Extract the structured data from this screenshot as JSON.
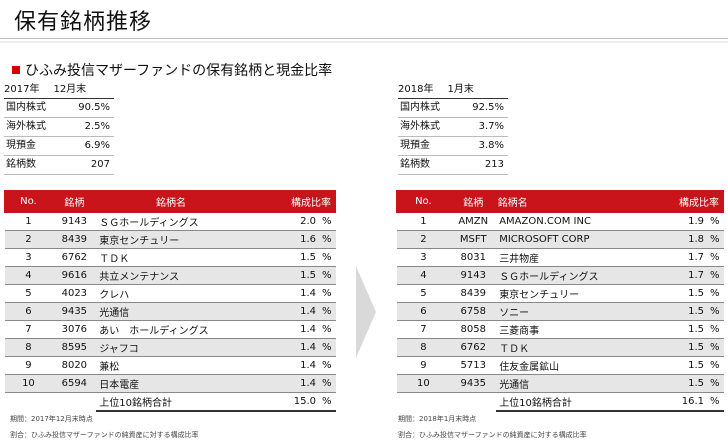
{
  "page_title": "保有銘柄推移",
  "subtitle": "ひふみ投信マザーファンドの保有銘柄と現金比率",
  "colors": {
    "accent": "#c9141b",
    "row_alt": "#e6e6e6",
    "arrow": "#d9d9d9"
  },
  "left": {
    "year": "2017年",
    "month": "12月末",
    "summary": [
      {
        "label": "国内株式",
        "value": "90.5%"
      },
      {
        "label": "海外株式",
        "value": "2.5%"
      },
      {
        "label": "現預金",
        "value": "6.9%"
      },
      {
        "label": "銘柄数",
        "value": "207"
      }
    ],
    "headers": {
      "no": "No.",
      "code": "銘柄",
      "name": "銘柄名",
      "ratio": "構成比率"
    },
    "rows": [
      {
        "no": "1",
        "code": "9143",
        "name": "ＳＧホールディングス",
        "pct": "2.0",
        "unit": "%"
      },
      {
        "no": "2",
        "code": "8439",
        "name": "東京センチュリー",
        "pct": "1.6",
        "unit": "%"
      },
      {
        "no": "3",
        "code": "6762",
        "name": "ＴＤＫ",
        "pct": "1.5",
        "unit": "%"
      },
      {
        "no": "4",
        "code": "9616",
        "name": "共立メンテナンス",
        "pct": "1.5",
        "unit": "%"
      },
      {
        "no": "5",
        "code": "4023",
        "name": "クレハ",
        "pct": "1.4",
        "unit": "%"
      },
      {
        "no": "6",
        "code": "9435",
        "name": "光通信",
        "pct": "1.4",
        "unit": "%"
      },
      {
        "no": "7",
        "code": "3076",
        "name": "あい　ホールディングス",
        "pct": "1.4",
        "unit": "%"
      },
      {
        "no": "8",
        "code": "8595",
        "name": "ジャフコ",
        "pct": "1.4",
        "unit": "%"
      },
      {
        "no": "9",
        "code": "8020",
        "name": "兼松",
        "pct": "1.4",
        "unit": "%"
      },
      {
        "no": "10",
        "code": "6594",
        "name": "日本電産",
        "pct": "1.4",
        "unit": "%"
      }
    ],
    "total": {
      "label": "上位10銘柄合計",
      "pct": "15.0",
      "unit": "%"
    },
    "note_period": "期間：2017年12月末時点",
    "note_ratio": "割合：ひふみ投信マザーファンドの純資産に対する構成比率"
  },
  "right": {
    "year": "2018年",
    "month": "1月末",
    "summary": [
      {
        "label": "国内株式",
        "value": "92.5%"
      },
      {
        "label": "海外株式",
        "value": "3.7%"
      },
      {
        "label": "現預金",
        "value": "3.8%"
      },
      {
        "label": "銘柄数",
        "value": "213"
      }
    ],
    "headers": {
      "no": "No.",
      "code": "銘柄",
      "name": "銘柄名",
      "ratio": "構成比率"
    },
    "rows": [
      {
        "no": "1",
        "code": "AMZN",
        "name": "AMAZON.COM INC",
        "pct": "1.9",
        "unit": "%"
      },
      {
        "no": "2",
        "code": "MSFT",
        "name": "MICROSOFT CORP",
        "pct": "1.8",
        "unit": "%"
      },
      {
        "no": "3",
        "code": "8031",
        "name": "三井物産",
        "pct": "1.7",
        "unit": "%"
      },
      {
        "no": "4",
        "code": "9143",
        "name": "ＳＧホールディングス",
        "pct": "1.7",
        "unit": "%"
      },
      {
        "no": "5",
        "code": "8439",
        "name": "東京センチュリー",
        "pct": "1.5",
        "unit": "%"
      },
      {
        "no": "6",
        "code": "6758",
        "name": "ソニー",
        "pct": "1.5",
        "unit": "%"
      },
      {
        "no": "7",
        "code": "8058",
        "name": "三菱商事",
        "pct": "1.5",
        "unit": "%"
      },
      {
        "no": "8",
        "code": "6762",
        "name": "ＴＤＫ",
        "pct": "1.5",
        "unit": "%"
      },
      {
        "no": "9",
        "code": "5713",
        "name": "住友金属鉱山",
        "pct": "1.5",
        "unit": "%"
      },
      {
        "no": "10",
        "code": "9435",
        "name": "光通信",
        "pct": "1.5",
        "unit": "%"
      }
    ],
    "total": {
      "label": "上位10銘柄合計",
      "pct": "16.1",
      "unit": "%"
    },
    "note_period": "期間：2018年1月末時点",
    "note_ratio": "割合：ひふみ投信マザーファンドの純資産に対する構成比率"
  }
}
